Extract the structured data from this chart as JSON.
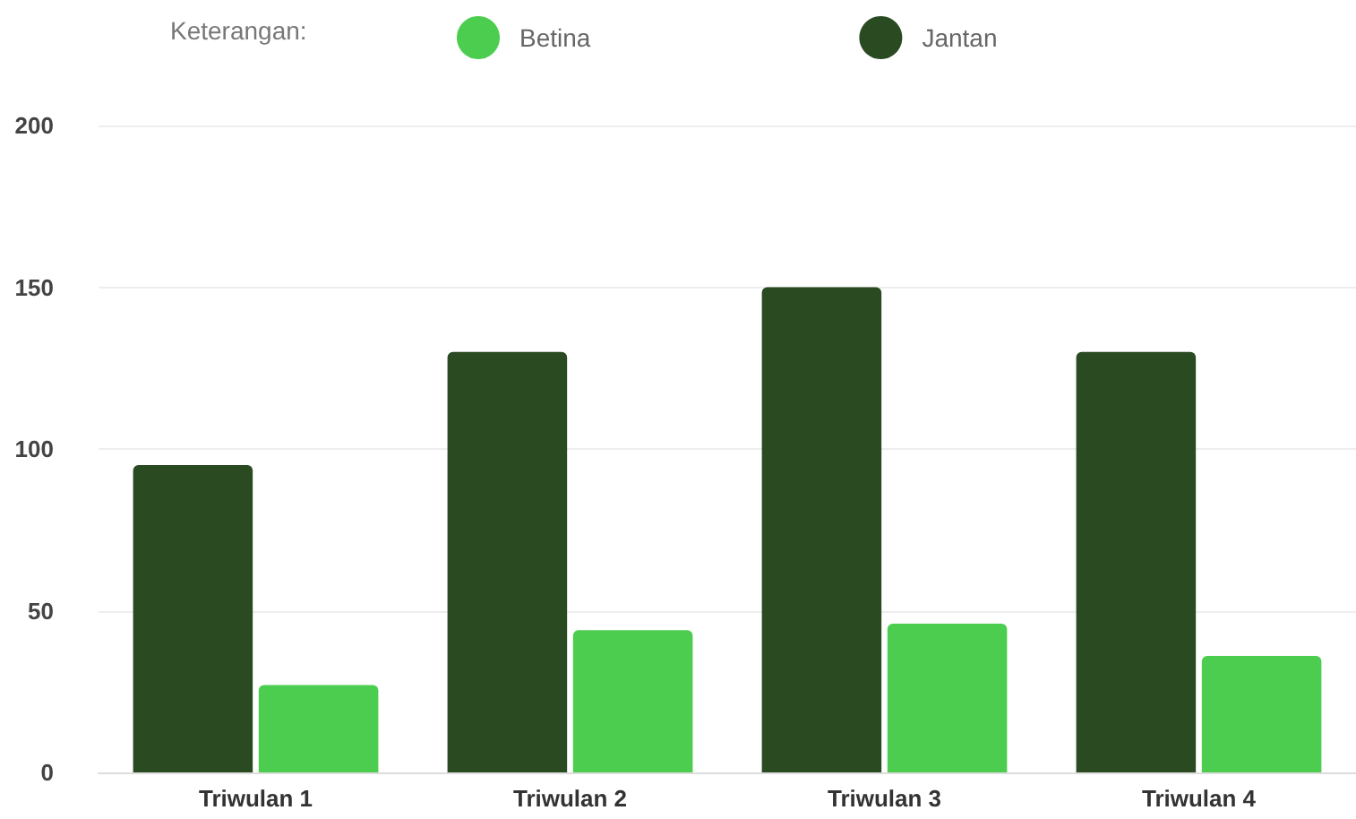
{
  "chart_data": {
    "type": "bar",
    "legend_title": "Keterangan:",
    "categories": [
      "Triwulan 1",
      "Triwulan 2",
      "Triwulan 3",
      "Triwulan 4"
    ],
    "series": [
      {
        "name": "Jantan",
        "color": "#2a4a22",
        "values": [
          95,
          130,
          150,
          130
        ]
      },
      {
        "name": "Betina",
        "color": "#4ccd4f",
        "values": [
          27,
          44,
          46,
          36
        ]
      }
    ],
    "ylim": [
      0,
      200
    ],
    "yticks": [
      0,
      50,
      100,
      150,
      200
    ],
    "grid": "y",
    "legend": "top"
  }
}
